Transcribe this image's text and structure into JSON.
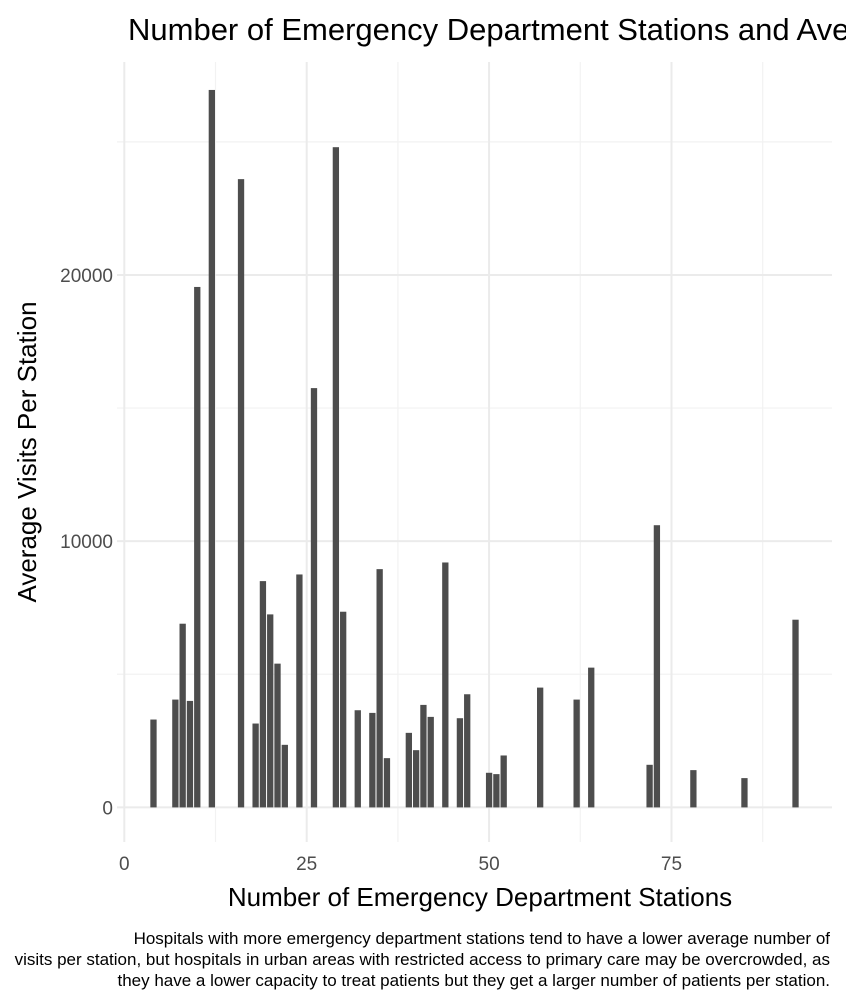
{
  "chart_data": {
    "type": "bar",
    "title": "Number of Emergency Department Stations and Average Visits Per Station",
    "xlabel": "Number of Emergency Department Stations",
    "ylabel": "Average Visits Per Station",
    "caption": [
      "Hospitals with more emergency department stations tend to have a lower average number of",
      "visits per station, but hospitals in urban areas with restricted access to primary care may be overcrowded, as",
      "they have a lower capacity to treat patients but they get a larger number of patients per station."
    ],
    "xlim": [
      -1,
      97
    ],
    "ylim": [
      -1300,
      28000
    ],
    "x_ticks": [
      0,
      25,
      50,
      75
    ],
    "x_tick_labels": [
      "0",
      "25",
      "50",
      "75"
    ],
    "y_ticks": [
      0,
      10000,
      20000
    ],
    "y_tick_labels": [
      "0",
      "10000",
      "20000"
    ],
    "grid": true,
    "x": [
      4,
      7,
      8,
      9,
      10,
      12,
      16,
      18,
      19,
      20,
      21,
      22,
      24,
      26,
      29,
      30,
      32,
      34,
      35,
      36,
      39,
      40,
      41,
      42,
      44,
      46,
      47,
      50,
      51,
      52,
      57,
      62,
      64,
      72,
      73,
      78,
      85,
      92
    ],
    "values": [
      3300,
      4050,
      6900,
      4000,
      19550,
      26950,
      23600,
      3150,
      8500,
      7250,
      5400,
      2350,
      8750,
      15750,
      24800,
      7350,
      3650,
      3550,
      8950,
      1850,
      2800,
      2150,
      3850,
      3400,
      9200,
      3350,
      4250,
      1300,
      1250,
      1950,
      4500,
      4050,
      5250,
      1600,
      10600,
      1400,
      1100,
      7050
    ]
  }
}
